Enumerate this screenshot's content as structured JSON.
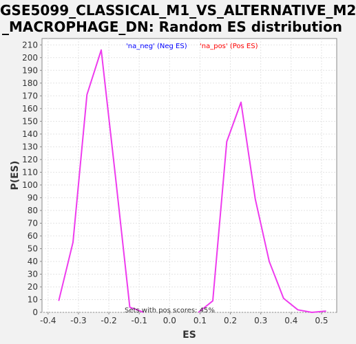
{
  "chart_data": {
    "type": "line",
    "title_line1": "GSE5099_CLASSICAL_M1_VS_ALTERNATIVE_M2",
    "title_line2": "_MACROPHAGE_DN: Random ES distribution",
    "xlabel": "ES",
    "ylabel": "P(ES)",
    "xlim": [
      -0.42,
      0.55
    ],
    "ylim": [
      0,
      215
    ],
    "xticks": [
      "-0.4",
      "-0.3",
      "-0.2",
      "-0.1",
      "0.0",
      "0.1",
      "0.2",
      "0.3",
      "0.4",
      "0.5"
    ],
    "xtick_values": [
      -0.4,
      -0.3,
      -0.2,
      -0.1,
      0.0,
      0.1,
      0.2,
      0.3,
      0.4,
      0.5
    ],
    "yticks": [
      0,
      10,
      20,
      30,
      40,
      50,
      60,
      70,
      80,
      90,
      100,
      110,
      120,
      130,
      140,
      150,
      160,
      170,
      180,
      190,
      200,
      210
    ],
    "grid": true,
    "legend": [
      {
        "label": "'na_neg' (Neg ES)",
        "color": "#0000ff"
      },
      {
        "label": "'na_pos' (Pos ES)",
        "color": "#ff0000"
      }
    ],
    "annotation": "Sets with pos scores: 45%",
    "series": [
      {
        "color": "#ee3bee",
        "x": [
          -0.365,
          -0.318,
          -0.272,
          -0.225,
          -0.178,
          -0.131,
          -0.085
        ],
        "y": [
          9,
          55,
          171,
          206,
          106,
          4,
          0
        ]
      },
      {
        "color": "#ee3bee",
        "x": [
          0.095,
          0.142,
          0.188,
          0.235,
          0.282,
          0.328,
          0.375,
          0.422,
          0.468,
          0.515
        ],
        "y": [
          0,
          9,
          134,
          165,
          89,
          40,
          11,
          2,
          0,
          1
        ]
      }
    ]
  }
}
